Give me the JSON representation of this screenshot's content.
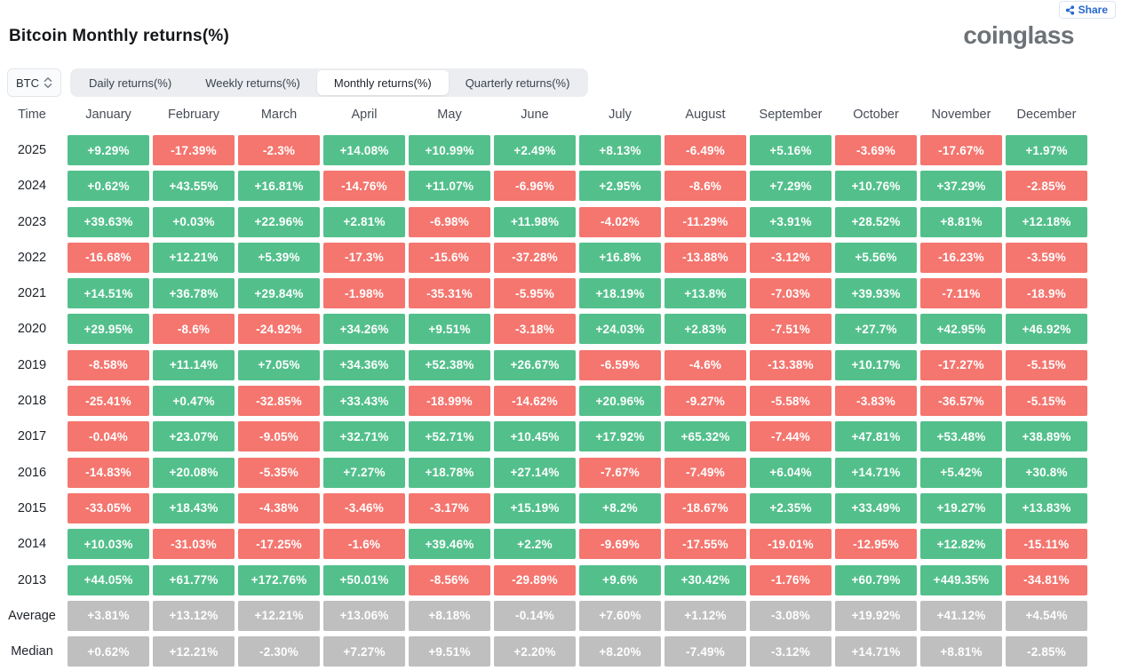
{
  "header": {
    "title": "Bitcoin Monthly returns(%)",
    "logo_text": "coinglass",
    "share_label": "Share"
  },
  "controls": {
    "coin_selector": {
      "value": "BTC"
    },
    "tabs": [
      {
        "label": "Daily returns(%)",
        "active": false
      },
      {
        "label": "Weekly returns(%)",
        "active": false
      },
      {
        "label": "Monthly returns(%)",
        "active": true
      },
      {
        "label": "Quarterly returns(%)",
        "active": false
      }
    ]
  },
  "colors": {
    "positive": "#53c08c",
    "negative": "#f4766f",
    "neutral": "#bfbfbf",
    "accent_blue": "#2667cf"
  },
  "table": {
    "time_header": "Time",
    "months": [
      "January",
      "February",
      "March",
      "April",
      "May",
      "June",
      "July",
      "August",
      "September",
      "October",
      "November",
      "December"
    ],
    "rows": [
      {
        "label": "2025",
        "type": "year",
        "values": [
          "+9.29%",
          "-17.39%",
          "-2.3%",
          "+14.08%",
          "+10.99%",
          "+2.49%",
          "+8.13%",
          "-6.49%",
          "+5.16%",
          "-3.69%",
          "-17.67%",
          "+1.97%"
        ]
      },
      {
        "label": "2024",
        "type": "year",
        "values": [
          "+0.62%",
          "+43.55%",
          "+16.81%",
          "-14.76%",
          "+11.07%",
          "-6.96%",
          "+2.95%",
          "-8.6%",
          "+7.29%",
          "+10.76%",
          "+37.29%",
          "-2.85%"
        ]
      },
      {
        "label": "2023",
        "type": "year",
        "values": [
          "+39.63%",
          "+0.03%",
          "+22.96%",
          "+2.81%",
          "-6.98%",
          "+11.98%",
          "-4.02%",
          "-11.29%",
          "+3.91%",
          "+28.52%",
          "+8.81%",
          "+12.18%"
        ]
      },
      {
        "label": "2022",
        "type": "year",
        "values": [
          "-16.68%",
          "+12.21%",
          "+5.39%",
          "-17.3%",
          "-15.6%",
          "-37.28%",
          "+16.8%",
          "-13.88%",
          "-3.12%",
          "+5.56%",
          "-16.23%",
          "-3.59%"
        ]
      },
      {
        "label": "2021",
        "type": "year",
        "values": [
          "+14.51%",
          "+36.78%",
          "+29.84%",
          "-1.98%",
          "-35.31%",
          "-5.95%",
          "+18.19%",
          "+13.8%",
          "-7.03%",
          "+39.93%",
          "-7.11%",
          "-18.9%"
        ]
      },
      {
        "label": "2020",
        "type": "year",
        "values": [
          "+29.95%",
          "-8.6%",
          "-24.92%",
          "+34.26%",
          "+9.51%",
          "-3.18%",
          "+24.03%",
          "+2.83%",
          "-7.51%",
          "+27.7%",
          "+42.95%",
          "+46.92%"
        ]
      },
      {
        "label": "2019",
        "type": "year",
        "values": [
          "-8.58%",
          "+11.14%",
          "+7.05%",
          "+34.36%",
          "+52.38%",
          "+26.67%",
          "-6.59%",
          "-4.6%",
          "-13.38%",
          "+10.17%",
          "-17.27%",
          "-5.15%"
        ]
      },
      {
        "label": "2018",
        "type": "year",
        "values": [
          "-25.41%",
          "+0.47%",
          "-32.85%",
          "+33.43%",
          "-18.99%",
          "-14.62%",
          "+20.96%",
          "-9.27%",
          "-5.58%",
          "-3.83%",
          "-36.57%",
          "-5.15%"
        ]
      },
      {
        "label": "2017",
        "type": "year",
        "values": [
          "-0.04%",
          "+23.07%",
          "-9.05%",
          "+32.71%",
          "+52.71%",
          "+10.45%",
          "+17.92%",
          "+65.32%",
          "-7.44%",
          "+47.81%",
          "+53.48%",
          "+38.89%"
        ]
      },
      {
        "label": "2016",
        "type": "year",
        "values": [
          "-14.83%",
          "+20.08%",
          "-5.35%",
          "+7.27%",
          "+18.78%",
          "+27.14%",
          "-7.67%",
          "-7.49%",
          "+6.04%",
          "+14.71%",
          "+5.42%",
          "+30.8%"
        ]
      },
      {
        "label": "2015",
        "type": "year",
        "values": [
          "-33.05%",
          "+18.43%",
          "-4.38%",
          "-3.46%",
          "-3.17%",
          "+15.19%",
          "+8.2%",
          "-18.67%",
          "+2.35%",
          "+33.49%",
          "+19.27%",
          "+13.83%"
        ]
      },
      {
        "label": "2014",
        "type": "year",
        "values": [
          "+10.03%",
          "-31.03%",
          "-17.25%",
          "-1.6%",
          "+39.46%",
          "+2.2%",
          "-9.69%",
          "-17.55%",
          "-19.01%",
          "-12.95%",
          "+12.82%",
          "-15.11%"
        ]
      },
      {
        "label": "2013",
        "type": "year",
        "values": [
          "+44.05%",
          "+61.77%",
          "+172.76%",
          "+50.01%",
          "-8.56%",
          "-29.89%",
          "+9.6%",
          "+30.42%",
          "-1.76%",
          "+60.79%",
          "+449.35%",
          "-34.81%"
        ]
      },
      {
        "label": "Average",
        "type": "summary",
        "values": [
          "+3.81%",
          "+13.12%",
          "+12.21%",
          "+13.06%",
          "+8.18%",
          "-0.14%",
          "+7.60%",
          "+1.12%",
          "-3.08%",
          "+19.92%",
          "+41.12%",
          "+4.54%"
        ]
      },
      {
        "label": "Median",
        "type": "summary",
        "values": [
          "+0.62%",
          "+12.21%",
          "-2.30%",
          "+7.27%",
          "+9.51%",
          "+2.20%",
          "+8.20%",
          "-7.49%",
          "-3.12%",
          "+14.71%",
          "+8.81%",
          "-2.85%"
        ]
      }
    ]
  },
  "chart_data": {
    "type": "heatmap",
    "title": "Bitcoin Monthly returns(%)",
    "columns": [
      "January",
      "February",
      "March",
      "April",
      "May",
      "June",
      "July",
      "August",
      "September",
      "October",
      "November",
      "December"
    ],
    "row_labels": [
      "2025",
      "2024",
      "2023",
      "2022",
      "2021",
      "2020",
      "2019",
      "2018",
      "2017",
      "2016",
      "2015",
      "2014",
      "2013",
      "Average",
      "Median"
    ],
    "values": [
      [
        9.29,
        -17.39,
        -2.3,
        14.08,
        10.99,
        2.49,
        8.13,
        -6.49,
        5.16,
        -3.69,
        -17.67,
        1.97
      ],
      [
        0.62,
        43.55,
        16.81,
        -14.76,
        11.07,
        -6.96,
        2.95,
        -8.6,
        7.29,
        10.76,
        37.29,
        -2.85
      ],
      [
        39.63,
        0.03,
        22.96,
        2.81,
        -6.98,
        11.98,
        -4.02,
        -11.29,
        3.91,
        28.52,
        8.81,
        12.18
      ],
      [
        -16.68,
        12.21,
        5.39,
        -17.3,
        -15.6,
        -37.28,
        16.8,
        -13.88,
        -3.12,
        5.56,
        -16.23,
        -3.59
      ],
      [
        14.51,
        36.78,
        29.84,
        -1.98,
        -35.31,
        -5.95,
        18.19,
        13.8,
        -7.03,
        39.93,
        -7.11,
        -18.9
      ],
      [
        29.95,
        -8.6,
        -24.92,
        34.26,
        9.51,
        -3.18,
        24.03,
        2.83,
        -7.51,
        27.7,
        42.95,
        46.92
      ],
      [
        -8.58,
        11.14,
        7.05,
        34.36,
        52.38,
        26.67,
        -6.59,
        -4.6,
        -13.38,
        10.17,
        -17.27,
        -5.15
      ],
      [
        -25.41,
        0.47,
        -32.85,
        33.43,
        -18.99,
        -14.62,
        20.96,
        -9.27,
        -5.58,
        -3.83,
        -36.57,
        -5.15
      ],
      [
        -0.04,
        23.07,
        -9.05,
        32.71,
        52.71,
        10.45,
        17.92,
        65.32,
        -7.44,
        47.81,
        53.48,
        38.89
      ],
      [
        -14.83,
        20.08,
        -5.35,
        7.27,
        18.78,
        27.14,
        -7.67,
        -7.49,
        6.04,
        14.71,
        5.42,
        30.8
      ],
      [
        -33.05,
        18.43,
        -4.38,
        -3.46,
        -3.17,
        15.19,
        8.2,
        -18.67,
        2.35,
        33.49,
        19.27,
        13.83
      ],
      [
        10.03,
        -31.03,
        -17.25,
        -1.6,
        39.46,
        2.2,
        -9.69,
        -17.55,
        -19.01,
        -12.95,
        12.82,
        -15.11
      ],
      [
        44.05,
        61.77,
        172.76,
        50.01,
        -8.56,
        -29.89,
        9.6,
        30.42,
        -1.76,
        60.79,
        449.35,
        -34.81
      ],
      [
        3.81,
        13.12,
        12.21,
        13.06,
        8.18,
        -0.14,
        7.6,
        1.12,
        -3.08,
        19.92,
        41.12,
        4.54
      ],
      [
        0.62,
        12.21,
        -2.3,
        7.27,
        9.51,
        2.2,
        8.2,
        -7.49,
        -3.12,
        14.71,
        8.81,
        -2.85
      ]
    ],
    "legend": "green = positive return, red = negative return, gray = summary rows"
  }
}
